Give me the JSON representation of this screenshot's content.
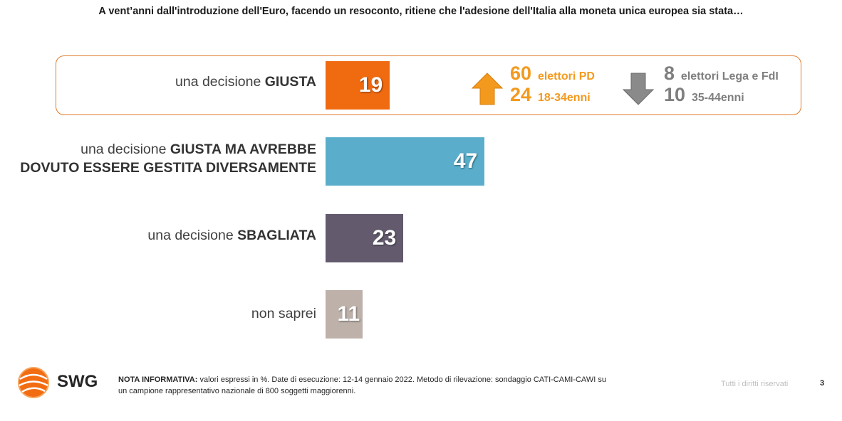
{
  "title": "A vent’anni dall'introduzione dell'Euro, facendo un resoconto, ritiene che l'adesione dell'Italia alla moneta unica europea sia stata…",
  "chart_data": {
    "type": "bar",
    "title": "A vent’anni dall'introduzione dell'Euro, facendo un resoconto, ritiene che l'adesione dell'Italia alla moneta unica europea sia stata…",
    "categories": [
      "una decisione GIUSTA",
      "una decisione GIUSTA MA AVREBBE DOVUTO ESSERE GESTITA DIVERSAMENTE",
      "una decisione SBAGLIATA",
      "non saprei"
    ],
    "values": [
      19,
      47,
      23,
      11
    ],
    "unit": "%",
    "colors": [
      "#f06a10",
      "#5aaecb",
      "#635a6e",
      "#bdb1aa"
    ]
  },
  "rows": [
    {
      "label_pre": "una decisione ",
      "label_bold": "GIUSTA",
      "label_line2": "",
      "value": "19"
    },
    {
      "label_pre": "una decisione ",
      "label_bold": "GIUSTA MA AVREBBE",
      "label_line2": "DOVUTO ESSERE GESTITA DIVERSAMENTE",
      "value": "47"
    },
    {
      "label_pre": "una decisione ",
      "label_bold": "SBAGLIATA",
      "label_line2": "",
      "value": "23"
    },
    {
      "label_pre": "",
      "label_bold": "",
      "label_line2": "",
      "label_plain": "non saprei",
      "value": "11"
    }
  ],
  "highlights": {
    "up": {
      "color": "#f39a1e",
      "items": [
        {
          "num": "60",
          "label": "elettori PD"
        },
        {
          "num": "24",
          "label": "18-34enni"
        }
      ]
    },
    "down": {
      "color": "#7f7f7f",
      "items": [
        {
          "num": "8",
          "label": "elettori Lega e FdI"
        },
        {
          "num": "10",
          "label": "35-44enni"
        }
      ]
    }
  },
  "footer": {
    "logo_text": "SWG",
    "note_bold": "NOTA INFORMATIVA:",
    "note_line1": " valori espressi in %. Date di esecuzione: 12-14 gennaio 2022. Metodo di rilevazione: sondaggio CATI-CAMI-CAWI su",
    "note_line2": "un campione rappresentativo nazionale di 800 soggetti maggiorenni.",
    "rights": "Tutti i diritti riservati",
    "page": "3"
  }
}
